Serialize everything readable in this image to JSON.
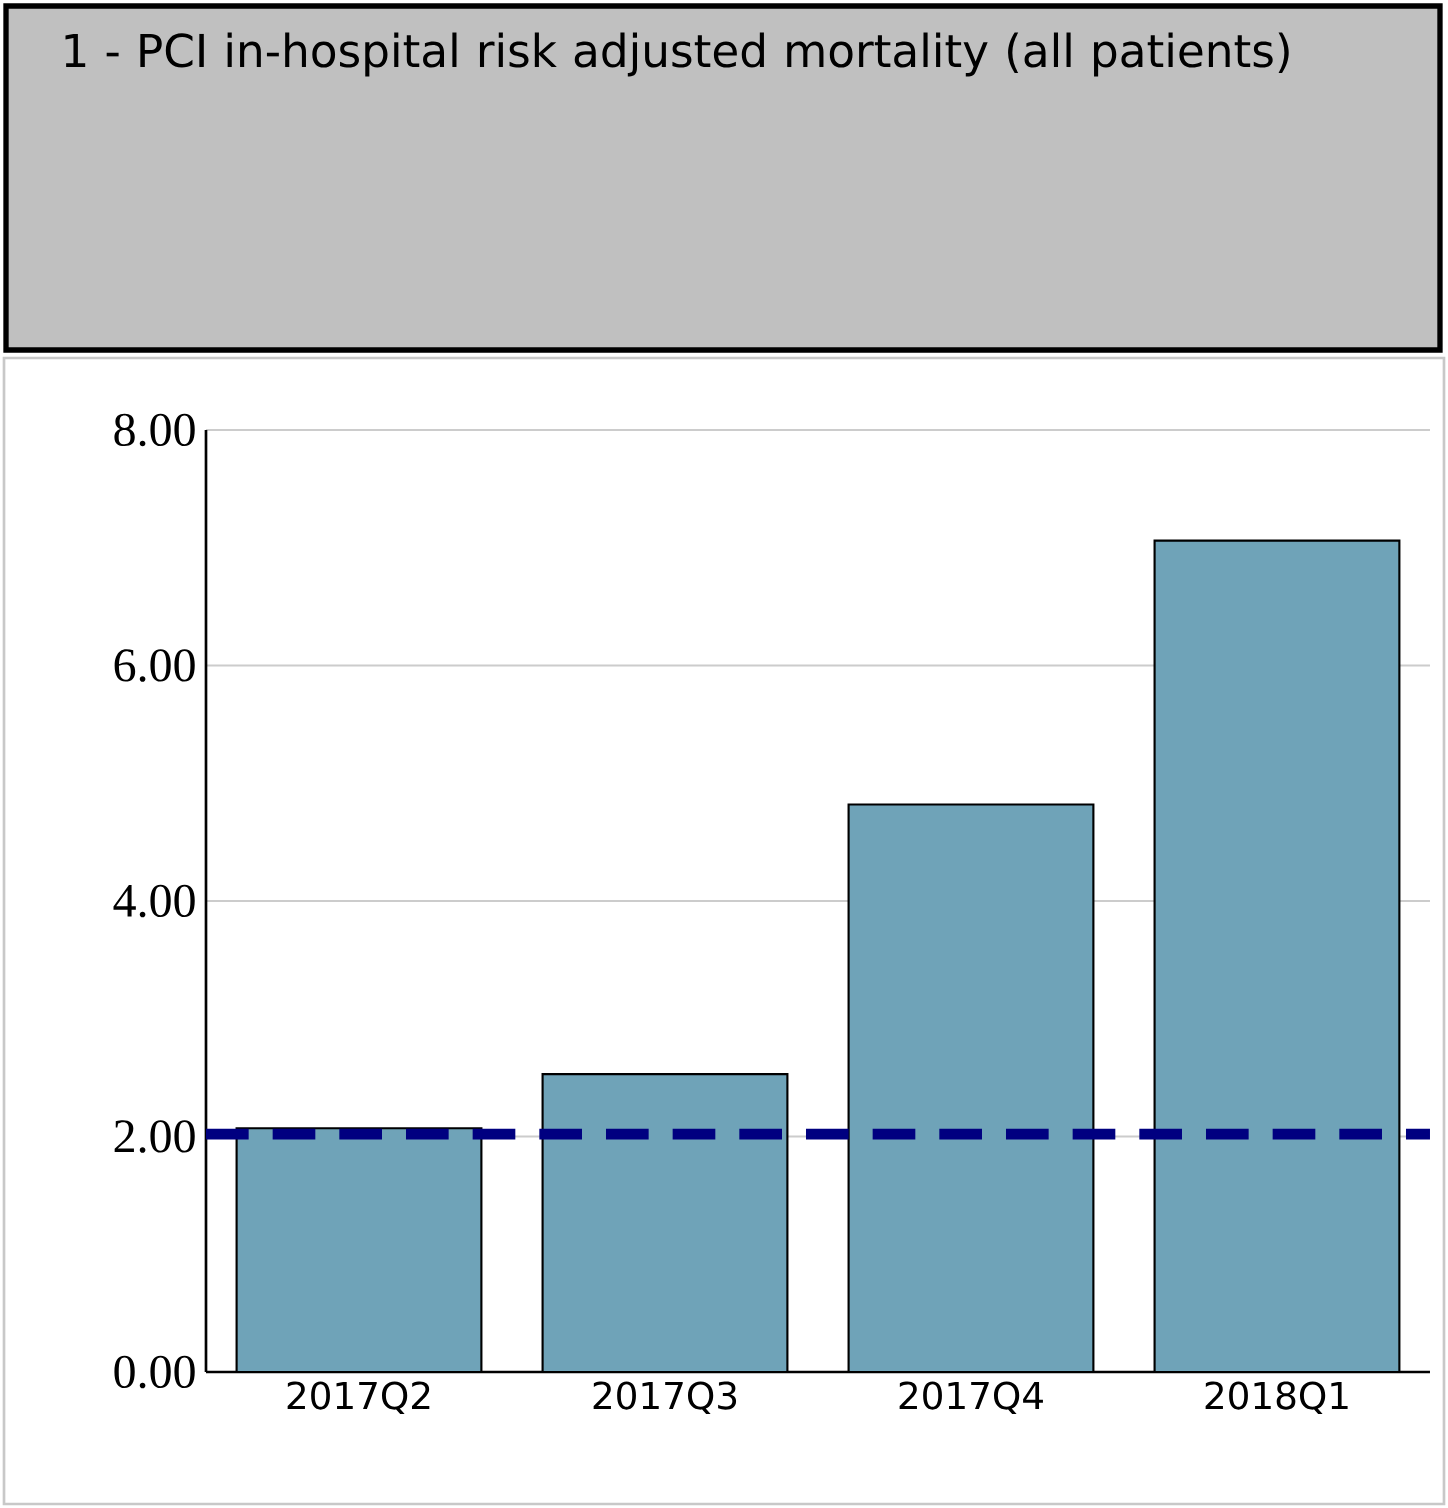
{
  "chart_data": {
    "type": "bar",
    "title": "1 - PCI in-hospital risk adjusted mortality (all patients)",
    "categories": [
      "2017Q2",
      "2017Q3",
      "2017Q4",
      "2018Q1"
    ],
    "values": [
      2.07,
      2.53,
      4.82,
      7.06
    ],
    "color": "#6fa3b8",
    "ylim": [
      0,
      8
    ],
    "yticks": [
      {
        "value": 0,
        "label": "0.00"
      },
      {
        "value": 2,
        "label": "2.00"
      },
      {
        "value": 4,
        "label": "4.00"
      },
      {
        "value": 6,
        "label": "6.00"
      },
      {
        "value": 8,
        "label": "8.00"
      }
    ],
    "grid": "y",
    "ref_lines": [
      {
        "axis": "y",
        "value": 2.02,
        "color": "#000080",
        "line_style": "dashed"
      }
    ]
  }
}
